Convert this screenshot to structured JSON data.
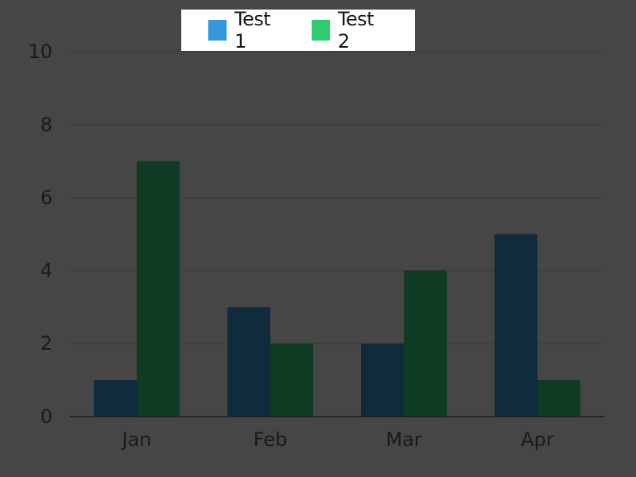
{
  "chart_data": {
    "type": "bar",
    "categories": [
      "Jan",
      "Feb",
      "Mar",
      "Apr"
    ],
    "series": [
      {
        "name": "Test 1",
        "values": [
          1,
          3,
          2,
          5
        ],
        "legend_color": "#3498db",
        "bar_color": "#0f2b3c"
      },
      {
        "name": "Test 2",
        "values": [
          7,
          2,
          4,
          1
        ],
        "legend_color": "#2ecc71",
        "bar_color": "#0e3b24"
      }
    ],
    "title": "",
    "xlabel": "",
    "ylabel": "",
    "ylim": [
      0,
      10
    ],
    "yticks": [
      0,
      2,
      4,
      6,
      8,
      10
    ],
    "grid": true,
    "legend_position": "top-center",
    "background_color": "#464646",
    "grid_color": "#3a3a3a",
    "axis_color": "#1a1a1a"
  }
}
